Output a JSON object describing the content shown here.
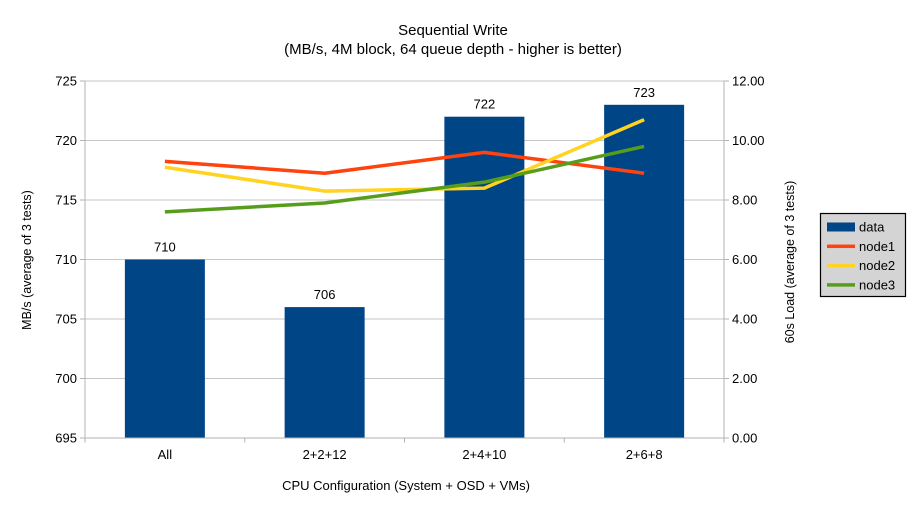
{
  "title": {
    "line1": "Sequential Write",
    "line2": "(MB/s, 4M block, 64 queue depth - higher is better)"
  },
  "chart_data": {
    "type": "combo bar+line, dual y-axes",
    "categories": [
      "All",
      "2+2+12",
      "2+4+10",
      "2+6+8"
    ],
    "series": [
      {
        "name": "data",
        "type": "bar",
        "axis": "left",
        "color": "#004586",
        "values": [
          710,
          706,
          722,
          723
        ],
        "data_labels": [
          "710",
          "706",
          "722",
          "723"
        ]
      },
      {
        "name": "node1",
        "type": "line",
        "axis": "right",
        "color": "#ff420e",
        "values": [
          9.3,
          8.9,
          9.6,
          8.9
        ]
      },
      {
        "name": "node2",
        "type": "line",
        "axis": "right",
        "color": "#ffd320",
        "values": [
          9.1,
          8.3,
          8.4,
          10.7
        ]
      },
      {
        "name": "node3",
        "type": "line",
        "axis": "right",
        "color": "#579d1c",
        "values": [
          7.6,
          7.9,
          8.6,
          9.8
        ]
      }
    ],
    "left_axis": {
      "label": "MB/s (average of 3 tests)",
      "min": 695,
      "max": 725,
      "step": 5,
      "tick_labels": [
        "695",
        "700",
        "705",
        "710",
        "715",
        "720",
        "725"
      ]
    },
    "right_axis": {
      "label": "60s Load (average of 3 tests)",
      "min": 0,
      "max": 12,
      "step": 2,
      "tick_labels": [
        "0.00",
        "2.00",
        "4.00",
        "6.00",
        "8.00",
        "10.00",
        "12.00"
      ]
    },
    "x_axis": {
      "label": "CPU Configuration (System + OSD + VMs)"
    },
    "legend": {
      "position": "right",
      "entries": [
        "data",
        "node1",
        "node2",
        "node3"
      ]
    },
    "grid": "horizontal only",
    "colors": {
      "gridline": "#c6c6c6",
      "axis_line": "#b3b3b3",
      "legend_background": "#d4d4d4",
      "legend_border": "#000000",
      "text": "#000000",
      "background": "#ffffff"
    }
  }
}
